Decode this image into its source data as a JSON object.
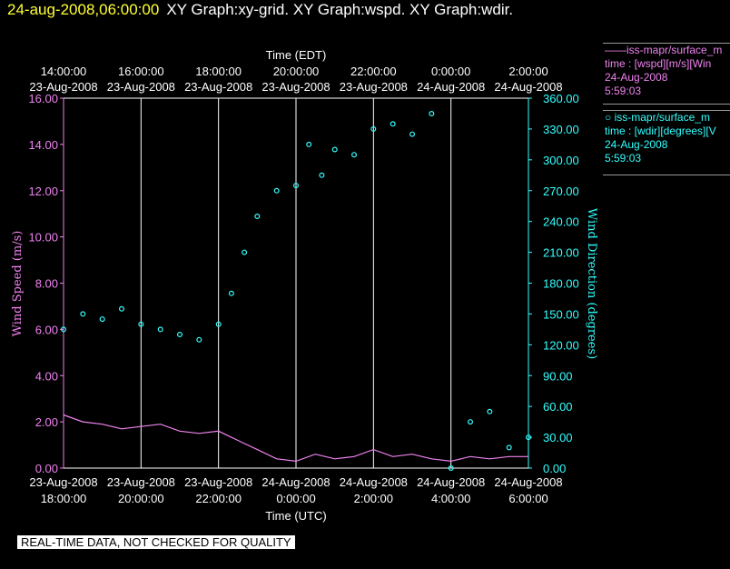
{
  "header": {
    "timestamp": "24-aug-2008,06:00:00",
    "titles": "XY Graph:xy-grid.  XY Graph:wspd.  XY Graph:wdir."
  },
  "legend": {
    "wspd": {
      "line1": "——iss-mapr/surface_m",
      "line2": "time : [wspd][m/s][Win",
      "line3": "24-Aug-2008",
      "line4": "5:59:03"
    },
    "wdir": {
      "line1": "○ iss-mapr/surface_m",
      "line2": "time : [wdir][degrees][V",
      "line3": "24-Aug-2008",
      "line4": "5:59:03"
    }
  },
  "footer": {
    "qc_notice": "REAL-TIME DATA, NOT CHECKED FOR QUALITY"
  },
  "colors": {
    "wspd": "#ee82ee",
    "wdir": "#33ffff",
    "grid": "#ffffff",
    "axis_left": "#ee82ee",
    "axis_right": "#33ffff",
    "header_timestamp": "#ffff33"
  },
  "chart_data": {
    "type": "line",
    "top_axis_title": "Time (EDT)",
    "bottom_axis_title": "Time (UTC)",
    "ylabel": "Wind Speed (m/s)",
    "y2label": "Wind Direction (degrees)",
    "xlim": [
      "2008-08-23 18:00",
      "2008-08-24 06:00"
    ],
    "ylim": [
      0,
      16
    ],
    "y2lim": [
      0,
      360
    ],
    "grid": true,
    "x_ticks_bottom": [
      {
        "date": "23-Aug-2008",
        "time": "18:00:00"
      },
      {
        "date": "23-Aug-2008",
        "time": "20:00:00"
      },
      {
        "date": "23-Aug-2008",
        "time": "22:00:00"
      },
      {
        "date": "24-Aug-2008",
        "time": "0:00:00"
      },
      {
        "date": "24-Aug-2008",
        "time": "2:00:00"
      },
      {
        "date": "24-Aug-2008",
        "time": "4:00:00"
      },
      {
        "date": "24-Aug-2008",
        "time": "6:00:00"
      }
    ],
    "x_ticks_top": [
      {
        "time": "14:00:00",
        "date": "23-Aug-2008"
      },
      {
        "time": "16:00:00",
        "date": "23-Aug-2008"
      },
      {
        "time": "18:00:00",
        "date": "23-Aug-2008"
      },
      {
        "time": "20:00:00",
        "date": "23-Aug-2008"
      },
      {
        "time": "22:00:00",
        "date": "23-Aug-2008"
      },
      {
        "time": "0:00:00",
        "date": "24-Aug-2008"
      },
      {
        "time": "2:00:00",
        "date": "24-Aug-2008"
      }
    ],
    "y_ticks_left": [
      "0.00",
      "2.00",
      "4.00",
      "6.00",
      "8.00",
      "10.00",
      "12.00",
      "14.00",
      "16.00"
    ],
    "y_ticks_right": [
      "0.00",
      "30.00",
      "60.00",
      "90.00",
      "120.00",
      "150.00",
      "180.00",
      "210.00",
      "240.00",
      "270.00",
      "300.00",
      "330.00",
      "360.00"
    ],
    "series": [
      {
        "name": "iss-mapr/surface_m time : [wspd][m/s]",
        "kind": "line",
        "axis": "left",
        "x": [
          "2008-08-23 18:00",
          "2008-08-23 18:30",
          "2008-08-23 19:00",
          "2008-08-23 19:30",
          "2008-08-23 20:00",
          "2008-08-23 20:30",
          "2008-08-23 21:00",
          "2008-08-23 21:30",
          "2008-08-23 22:00",
          "2008-08-23 22:30",
          "2008-08-23 23:00",
          "2008-08-23 23:30",
          "2008-08-24 00:00",
          "2008-08-24 00:30",
          "2008-08-24 01:00",
          "2008-08-24 01:30",
          "2008-08-24 02:00",
          "2008-08-24 02:30",
          "2008-08-24 03:00",
          "2008-08-24 03:30",
          "2008-08-24 04:00",
          "2008-08-24 04:30",
          "2008-08-24 05:00",
          "2008-08-24 05:30",
          "2008-08-24 06:00"
        ],
        "y": [
          2.3,
          2.0,
          1.9,
          1.7,
          1.8,
          1.9,
          1.6,
          1.5,
          1.6,
          1.2,
          0.8,
          0.4,
          0.3,
          0.6,
          0.4,
          0.5,
          0.8,
          0.5,
          0.6,
          0.4,
          0.3,
          0.5,
          0.4,
          0.5,
          0.5
        ]
      },
      {
        "name": "iss-mapr/surface_m time : [wdir][degrees]",
        "kind": "scatter",
        "axis": "right",
        "x": [
          "2008-08-23 18:00",
          "2008-08-23 18:30",
          "2008-08-23 19:00",
          "2008-08-23 19:30",
          "2008-08-23 20:00",
          "2008-08-23 20:30",
          "2008-08-23 21:00",
          "2008-08-23 21:30",
          "2008-08-23 22:00",
          "2008-08-23 22:20",
          "2008-08-23 22:40",
          "2008-08-23 23:00",
          "2008-08-23 23:30",
          "2008-08-24 00:00",
          "2008-08-24 00:20",
          "2008-08-24 00:40",
          "2008-08-24 01:00",
          "2008-08-24 01:30",
          "2008-08-24 02:00",
          "2008-08-24 02:30",
          "2008-08-24 03:00",
          "2008-08-24 03:30",
          "2008-08-24 04:00",
          "2008-08-24 04:30",
          "2008-08-24 05:00",
          "2008-08-24 05:30",
          "2008-08-24 06:00"
        ],
        "y": [
          135,
          150,
          145,
          155,
          140,
          135,
          130,
          125,
          140,
          170,
          210,
          245,
          270,
          275,
          315,
          285,
          310,
          305,
          330,
          335,
          325,
          345,
          0,
          45,
          55,
          20,
          30
        ]
      }
    ]
  }
}
